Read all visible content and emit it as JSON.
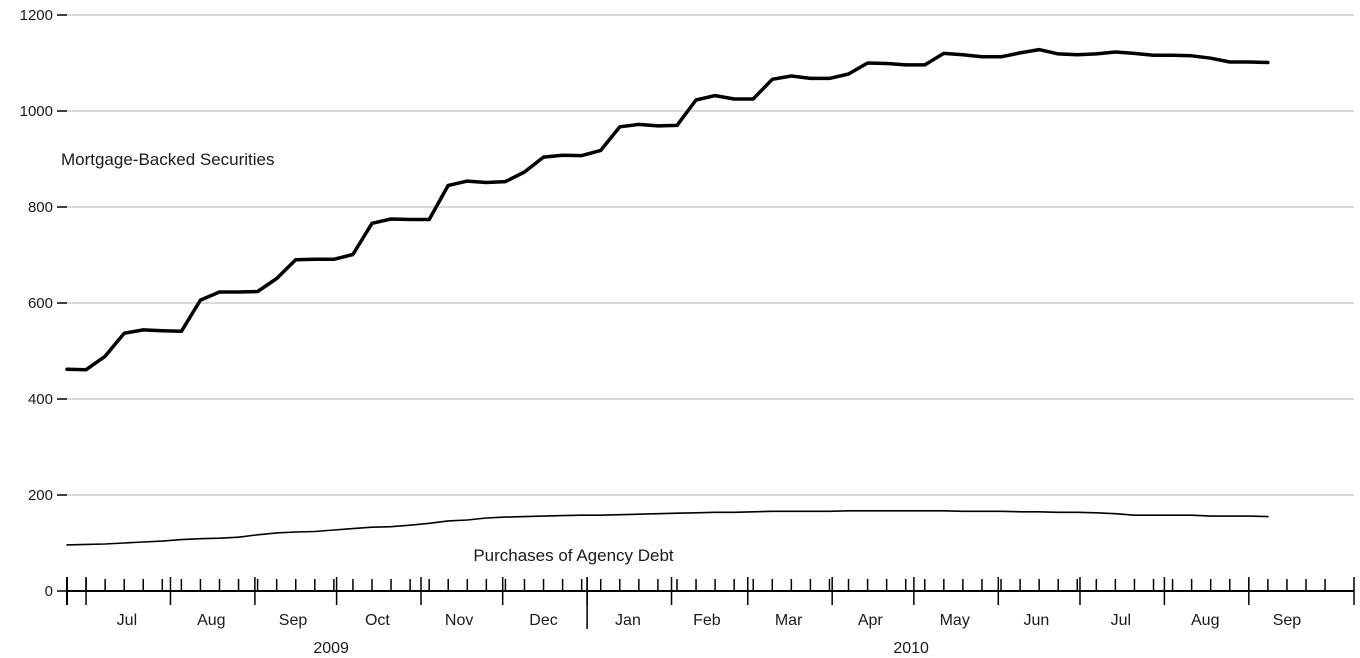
{
  "chart_data": {
    "type": "line",
    "title": "",
    "xlabel": "",
    "ylabel": "",
    "ylim": [
      0,
      1200
    ],
    "yticks": [
      0,
      200,
      400,
      600,
      800,
      1000,
      1200
    ],
    "grid": true,
    "x_start": "2009-06-24",
    "x_end": "2010-09-22",
    "x_step_days": 7,
    "month_labels": [
      {
        "label": "Jul",
        "date": "2009-07-16"
      },
      {
        "label": "Aug",
        "date": "2009-08-16"
      },
      {
        "label": "Sep",
        "date": "2009-09-15"
      },
      {
        "label": "Oct",
        "date": "2009-10-16"
      },
      {
        "label": "Nov",
        "date": "2009-11-15"
      },
      {
        "label": "Dec",
        "date": "2009-12-16"
      },
      {
        "label": "Jan",
        "date": "2010-01-16"
      },
      {
        "label": "Feb",
        "date": "2010-02-14"
      },
      {
        "label": "Mar",
        "date": "2010-03-16"
      },
      {
        "label": "Apr",
        "date": "2010-04-15"
      },
      {
        "label": "May",
        "date": "2010-05-16"
      },
      {
        "label": "Jun",
        "date": "2010-06-15"
      },
      {
        "label": "Jul",
        "date": "2010-07-16"
      },
      {
        "label": "Aug",
        "date": "2010-08-16"
      },
      {
        "label": "Sep",
        "date": "2010-09-15"
      }
    ],
    "month_boundaries": [
      "2009-07-01",
      "2009-08-01",
      "2009-09-01",
      "2009-10-01",
      "2009-11-01",
      "2009-12-01",
      "2010-01-01",
      "2010-02-01",
      "2010-03-01",
      "2010-04-01",
      "2010-05-01",
      "2010-06-01",
      "2010-07-01",
      "2010-08-01",
      "2010-09-01"
    ],
    "year_labels": [
      {
        "label": "2009",
        "date": "2009-09-29"
      },
      {
        "label": "2010",
        "date": "2010-04-30"
      }
    ],
    "year_boundary": "2010-01-01",
    "series": [
      {
        "name": "Mortgage-Backed Securities",
        "label_date": "2009-07-31",
        "label_value": 900,
        "values": [
          462,
          461,
          489,
          537,
          544,
          542,
          541,
          606,
          623,
          623,
          624,
          651,
          690,
          691,
          691,
          701,
          766,
          775,
          774,
          774,
          845,
          854,
          851,
          853,
          873,
          904,
          908,
          907,
          918,
          967,
          972,
          969,
          970,
          1023,
          1032,
          1025,
          1025,
          1066,
          1073,
          1068,
          1068,
          1077,
          1100,
          1099,
          1096,
          1096,
          1120,
          1117,
          1113,
          1113,
          1121,
          1128,
          1119,
          1117,
          1119,
          1123,
          1120,
          1116,
          1116,
          1115,
          1110,
          1102,
          1102,
          1101
        ]
      },
      {
        "name": "Purchases of Agency Debt",
        "label_date": "2009-12-27",
        "label_value": 75,
        "values": [
          96,
          97,
          98,
          100,
          102,
          104,
          107,
          109,
          110,
          112,
          117,
          121,
          123,
          124,
          127,
          130,
          133,
          134,
          137,
          141,
          146,
          148,
          152,
          154,
          155,
          156,
          157,
          158,
          158,
          159,
          160,
          161,
          162,
          163,
          164,
          164,
          165,
          166,
          166,
          166,
          166,
          167,
          167,
          167,
          167,
          167,
          167,
          166,
          166,
          166,
          165,
          165,
          164,
          164,
          163,
          161,
          158,
          158,
          158,
          158,
          156,
          156,
          156,
          155
        ]
      }
    ]
  }
}
